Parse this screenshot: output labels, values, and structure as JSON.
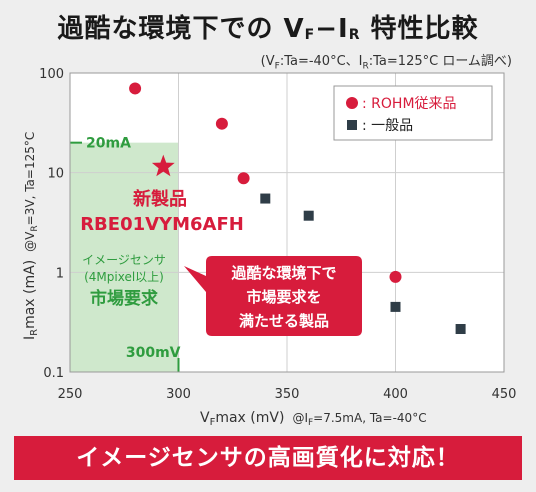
{
  "title": {
    "main_prefix": "過酷な環境下での V",
    "sub_f": "F",
    "dash": "−I",
    "sub_r": "R",
    "main_suffix": " 特性比較"
  },
  "subtitle": {
    "p1": "(V",
    "s1": "F",
    "p2": ":Ta=-40°C、I",
    "s2": "R",
    "p3": ":Ta=125°C ローム調べ)"
  },
  "chart_data": {
    "type": "scatter",
    "x_ticks": [
      "250",
      "300",
      "350",
      "400",
      "450"
    ],
    "y_ticks": [
      "100",
      "10",
      "1",
      "0.1"
    ],
    "xlim": [
      250,
      450
    ],
    "ylim": [
      0.1,
      100
    ],
    "y_scale": "log",
    "grid": true,
    "xlabel": {
      "main": "V",
      "sub": "F",
      "rest": "max (mV)",
      "cond": "@I",
      "cond_sub": "F",
      "cond_rest": "=7.5mA,  Ta=-40°C"
    },
    "ylabel": {
      "main": "I",
      "sub": "R",
      "rest": "max (mA)",
      "cond": "@V",
      "cond_sub": "R",
      "cond_rest": "=3V,  Ta=125°C"
    },
    "legend": {
      "position": "top-right",
      "items": [
        {
          "label": ": ROHM従来品",
          "marker": "circle",
          "color": "#d71c3c"
        },
        {
          "label": ": 一般品",
          "marker": "square",
          "color": "#2f3d47"
        }
      ]
    },
    "series": [
      {
        "name": "ROHM従来品",
        "marker": "circle",
        "color": "#d71c3c",
        "x": [
          280,
          320,
          330,
          400
        ],
        "y": [
          70,
          31,
          8.8,
          0.9
        ]
      },
      {
        "name": "一般品",
        "marker": "square",
        "color": "#2f3d47",
        "x": [
          340,
          360,
          400,
          430
        ],
        "y": [
          5.5,
          3.7,
          0.45,
          0.27
        ]
      }
    ],
    "highlight": {
      "marker": "star",
      "color": "#d71c3c",
      "x": 293,
      "y": 11.5,
      "label1": "新製品",
      "label2": "RBE01VYM6AFH"
    },
    "region": {
      "x_max": 300,
      "y_max": 20,
      "color": "#cfe8cc",
      "label1": "イメージセンサ",
      "label2": "(4Mpixel以上)",
      "label3": "市場要求",
      "hline_label": "20mA",
      "vline_label": "300mV",
      "line_color": "#2f9c3f"
    },
    "callout": {
      "lines": [
        "過酷な環境下で",
        "市場要求を",
        "満たせる製品"
      ],
      "color": "#d71c3c"
    }
  },
  "banner": "イメージセンサの高画質化に対応！"
}
